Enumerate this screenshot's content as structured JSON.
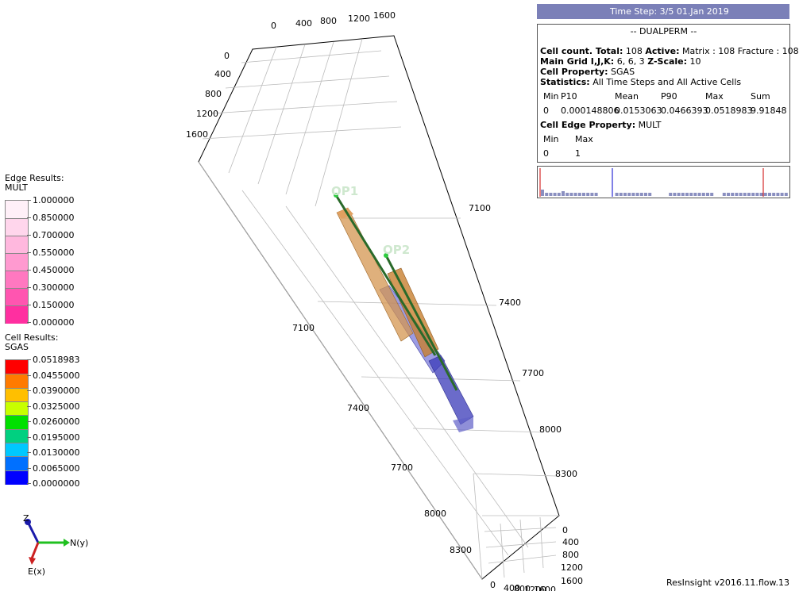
{
  "edge_legend": {
    "title": "Edge Results:",
    "property": "MULT",
    "colors": [
      "#fff0f8",
      "#ffd6ec",
      "#ffb8de",
      "#ff9ad0",
      "#ff78c0",
      "#ff55b0",
      "#ff2fa0"
    ],
    "labels": [
      "1.000000",
      "0.850000",
      "0.700000",
      "0.550000",
      "0.450000",
      "0.300000",
      "0.150000",
      "0.000000"
    ]
  },
  "cell_legend": {
    "title": "Cell Results:",
    "property": "SGAS",
    "colors": [
      "#ff0000",
      "#ff7a00",
      "#ffbf00",
      "#c8ff00",
      "#00e000",
      "#00d080",
      "#00c8ff",
      "#0070ff",
      "#0000ff"
    ],
    "labels": [
      "0.0518983",
      "0.0455000",
      "0.0390000",
      "0.0325000",
      "0.0260000",
      "0.0195000",
      "0.0130000",
      "0.0065000",
      "0.0000000"
    ]
  },
  "timestep": "Time Step: 3/5 01.Jan 2019",
  "info": {
    "title": "-- DUALPERM --",
    "cell_count_label": "Cell count. Total:",
    "cell_count_total": "108",
    "active_label": "Active:",
    "active_value": "Matrix : 108 Fracture : 108",
    "grid_label": "Main Grid I,J,K:",
    "grid_value": "6, 6, 3",
    "zscale_label": "Z-Scale:",
    "zscale_value": "10",
    "cell_prop_label": "Cell Property:",
    "cell_prop_value": "SGAS",
    "stats_label": "Statistics:",
    "stats_value": "All Time Steps and All Active Cells",
    "stat_headers": [
      "Min",
      "P10",
      "Mean",
      "P90",
      "Max",
      "Sum"
    ],
    "stat_values": [
      "0",
      "0.000148806",
      "0.0153063",
      "0.0466393",
      "0.0518983",
      "9.91848"
    ],
    "edge_prop_label": "Cell Edge Property:",
    "edge_prop_value": "MULT",
    "edge_headers": [
      "Min",
      "Max"
    ],
    "edge_values": [
      "0",
      "1"
    ]
  },
  "histogram": {
    "bar_color": "#8a8fc0",
    "mean_line_color": "#0000cc",
    "p_line_color": "#cc0000"
  },
  "wells": [
    "OP1",
    "OP2"
  ],
  "axis_labels": {
    "top_x": [
      "0",
      "400",
      "800",
      "1200",
      "1600"
    ],
    "top_y": [
      "0",
      "400",
      "800",
      "1200",
      "1600"
    ],
    "right_depth": [
      "7100",
      "7400",
      "7700",
      "8000",
      "8300"
    ],
    "inner_depth": [
      "7100",
      "7400",
      "7700",
      "8000",
      "8300"
    ],
    "bottom_y": [
      "0",
      "400",
      "800",
      "1200",
      "1600"
    ],
    "bottom_x": [
      "0",
      "400",
      "800",
      "1200",
      "1600"
    ]
  },
  "axes": {
    "z": "Z",
    "n": "N(y)",
    "e": "E(x)"
  },
  "version": "ResInsight v2016.11.flow.13"
}
